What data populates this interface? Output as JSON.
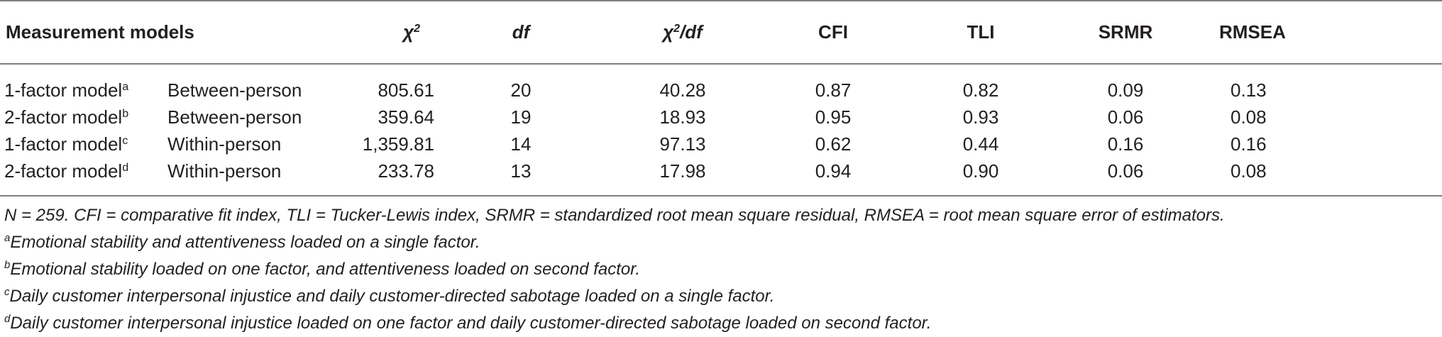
{
  "table": {
    "headers": {
      "measurement_models": "Measurement models",
      "chi2": "χ2",
      "chi2_base": "χ",
      "chi2_sup": "2",
      "df": "df",
      "chi2df_base": "χ",
      "chi2df_sup": "2",
      "chi2df_tail": "/df",
      "cfi": "CFI",
      "tli": "TLI",
      "srmr": "SRMR",
      "rmsea": "RMSEA"
    },
    "rows": [
      {
        "model": "1-factor model",
        "note": "a",
        "level": "Between-person",
        "chi2": "805.61",
        "df": "20",
        "chi2df": "40.28",
        "cfi": "0.87",
        "tli": "0.82",
        "srmr": "0.09",
        "rmsea": "0.13"
      },
      {
        "model": "2-factor model",
        "note": "b",
        "level": "Between-person",
        "chi2": "359.64",
        "df": "19",
        "chi2df": "18.93",
        "cfi": "0.95",
        "tli": "0.93",
        "srmr": "0.06",
        "rmsea": "0.08"
      },
      {
        "model": "1-factor model",
        "note": "c",
        "level": "Within-person",
        "chi2": "1,359.81",
        "df": "14",
        "chi2df": "97.13",
        "cfi": "0.62",
        "tli": "0.44",
        "srmr": "0.16",
        "rmsea": "0.16"
      },
      {
        "model": "2-factor model",
        "note": "d",
        "level": "Within-person",
        "chi2": "233.78",
        "df": "13",
        "chi2df": "17.98",
        "cfi": "0.94",
        "tli": "0.90",
        "srmr": "0.06",
        "rmsea": "0.08"
      }
    ]
  },
  "notes": {
    "general": "N = 259. CFI = comparative fit index, TLI = Tucker-Lewis index, SRMR = standardized root mean square residual, RMSEA = root mean square error of estimators.",
    "items": [
      {
        "mark": "a",
        "text": "Emotional stability and attentiveness loaded on a single factor."
      },
      {
        "mark": "b",
        "text": "Emotional stability loaded on one factor, and attentiveness loaded on second factor."
      },
      {
        "mark": "c",
        "text": "Daily customer interpersonal injustice and daily customer-directed sabotage loaded on a single factor."
      },
      {
        "mark": "d",
        "text": "Daily customer interpersonal injustice loaded on one factor and daily customer-directed sabotage loaded on second factor."
      }
    ]
  },
  "colors": {
    "text": "#231f20",
    "rule": "#7f7f7f"
  }
}
